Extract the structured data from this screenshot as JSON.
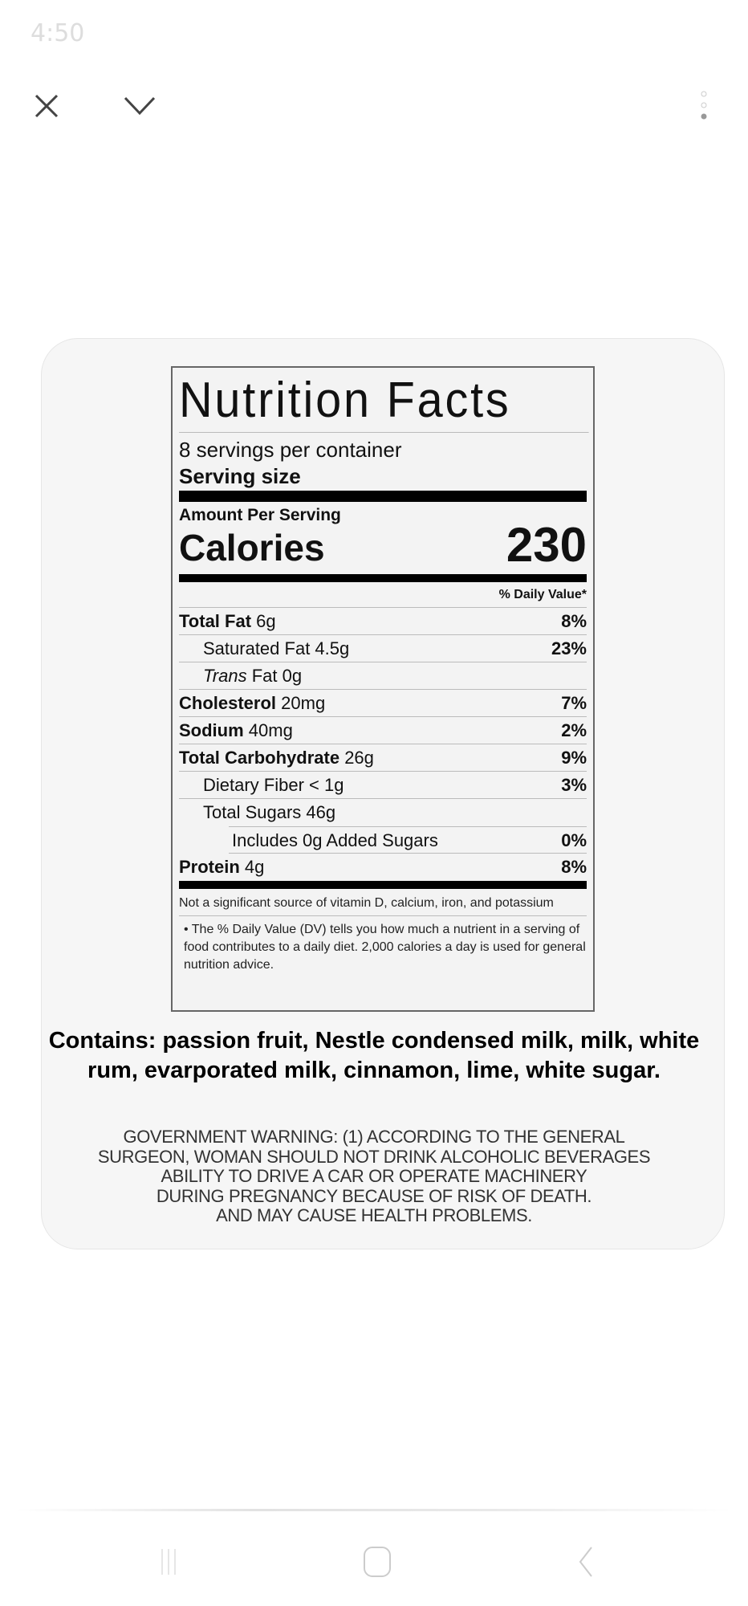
{
  "status_bar": {
    "time": "4:50"
  },
  "toolbar": {
    "close_icon": "close-icon",
    "collapse_icon": "chevron-down-icon",
    "more_icon": "more-vertical-icon"
  },
  "label": {
    "title": "Nutrition Facts",
    "servings": "8 servings per container",
    "serving_size": "Serving size",
    "amount_per_serving": "Amount Per Serving",
    "calories_label": "Calories",
    "calories_value": "230",
    "dv_header": "% Daily Value*",
    "rows": [
      {
        "name": "Total Fat",
        "amount": "6g",
        "dv": "8%"
      },
      {
        "name": "Saturated Fat 4.5g",
        "amount": "",
        "dv": "23%"
      },
      {
        "name": "Trans",
        "amount": "Fat 0g",
        "dv": ""
      },
      {
        "name": "Cholesterol",
        "amount": "20mg",
        "dv": "7%"
      },
      {
        "name": "Sodium",
        "amount": "40mg",
        "dv": "2%"
      },
      {
        "name": "Total Carbohydrate",
        "amount": "26g",
        "dv": "9%"
      },
      {
        "name": "Dietary Fiber < 1g",
        "amount": "",
        "dv": "3%"
      },
      {
        "name": "Total Sugars 46g",
        "amount": "",
        "dv": ""
      },
      {
        "name": "Includes 0g Added Sugars",
        "amount": "",
        "dv": "0%"
      },
      {
        "name": "Protein",
        "amount": "4g",
        "dv": "8%"
      }
    ],
    "footnote1": "Not a significant source of vitamin D, calcium, iron, and potassium",
    "footnote2": "The % Daily Value (DV) tells you how much a nutrient in a serving of food contributes to a daily diet. 2,000 calories a day is used for general nutrition advice."
  },
  "contains": "Contains: passion fruit, Nestle condensed milk, milk, white rum, evarporated milk, cinnamon, lime, white sugar.",
  "warning": [
    "GOVERNMENT WARNING: (1) ACCORDING TO THE GENERAL",
    "SURGEON, WOMAN SHOULD NOT DRINK ALCOHOLIC BEVERAGES",
    "ABILITY TO DRIVE A CAR OR OPERATE MACHINERY",
    "DURING PREGNANCY BECAUSE OF RISK OF DEATH.",
    "AND MAY CAUSE HEALTH PROBLEMS."
  ],
  "nav": {
    "recents": "recents-icon",
    "home": "home-icon",
    "back": "back-icon"
  }
}
